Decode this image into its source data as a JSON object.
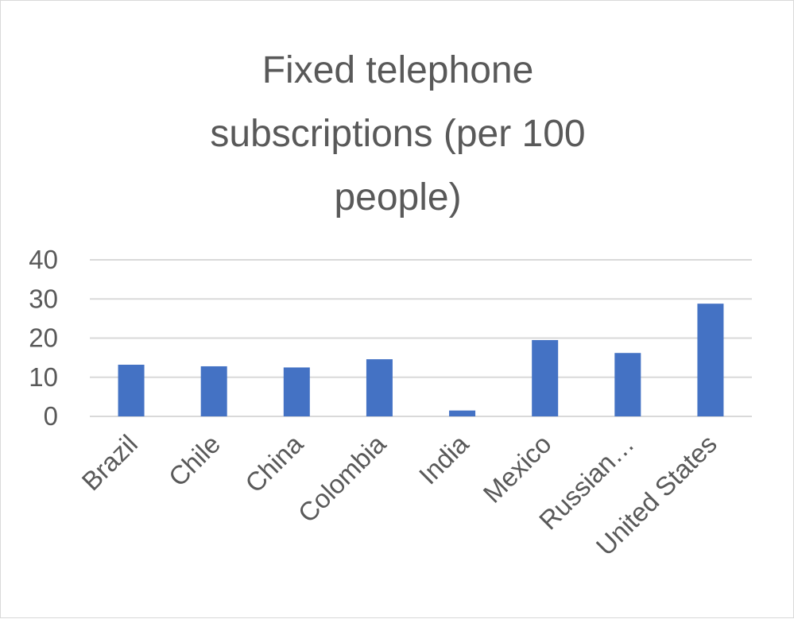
{
  "chart_data": {
    "type": "bar",
    "title": "Fixed telephone subscriptions (per 100 people)",
    "categories": [
      "Brazil",
      "Chile",
      "China",
      "Colombia",
      "India",
      "Mexico",
      "Russian…",
      "United States"
    ],
    "values": [
      13.2,
      12.8,
      12.5,
      14.6,
      1.5,
      19.5,
      16.2,
      28.8
    ],
    "ylim": [
      0,
      40
    ],
    "yticks": [
      0,
      10,
      20,
      30,
      40
    ],
    "grid": true,
    "bar_color": "#4472C4",
    "xlabel": "",
    "ylabel": ""
  }
}
